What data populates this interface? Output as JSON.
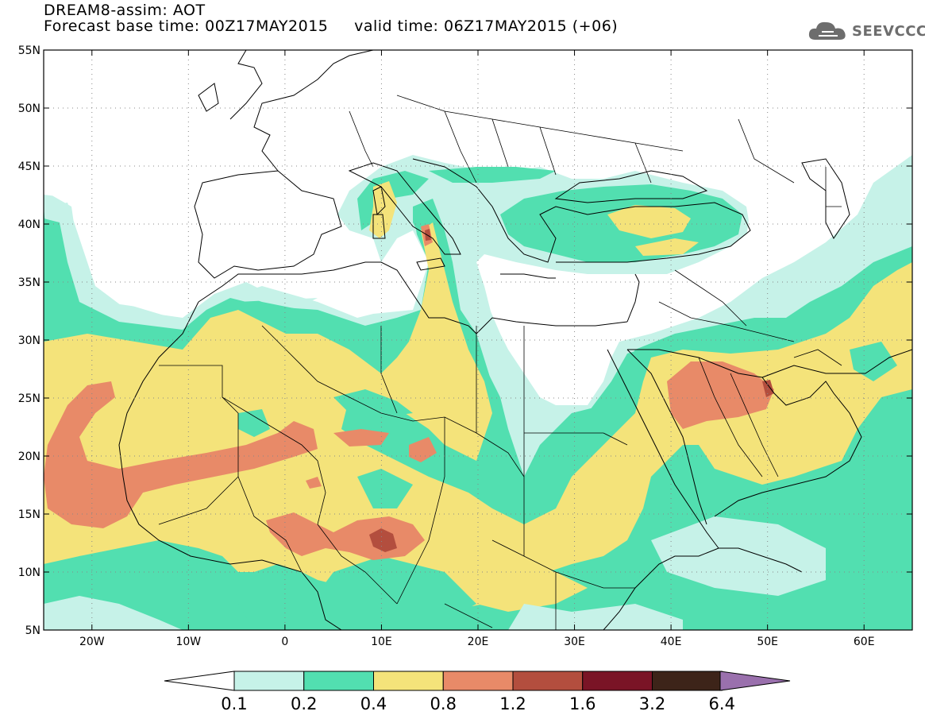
{
  "title": {
    "line1": "DREAM8-assim: AOT",
    "line2": "Forecast base time: 00Z17MAY2015     valid time: 06Z17MAY2015 (+06)"
  },
  "logo": {
    "icon": "cloud-icon",
    "text": "SEEVCCC"
  },
  "map": {
    "lon_range": [
      -25,
      65
    ],
    "lat_range": [
      5,
      55
    ],
    "lat_labels": [
      "5N",
      "10N",
      "15N",
      "20N",
      "25N",
      "30N",
      "35N",
      "40N",
      "45N",
      "50N",
      "55N"
    ],
    "lat_values": [
      5,
      10,
      15,
      20,
      25,
      30,
      35,
      40,
      45,
      50,
      55
    ],
    "lon_labels": [
      "20W",
      "10W",
      "0",
      "10E",
      "20E",
      "30E",
      "40E",
      "50E",
      "60E"
    ],
    "lon_values": [
      -20,
      -10,
      0,
      10,
      20,
      30,
      40,
      50,
      60
    ],
    "grid": "dotted"
  },
  "colorbar": {
    "labels": [
      "0.1",
      "0.2",
      "0.4",
      "0.8",
      "1.2",
      "1.6",
      "3.2",
      "6.4"
    ],
    "colors": [
      "#c6f2e8",
      "#52dfb0",
      "#f4e37a",
      "#e88a68",
      "#b34e3e",
      "#7a1426",
      "#3d2419",
      "#9a70ad"
    ]
  }
}
